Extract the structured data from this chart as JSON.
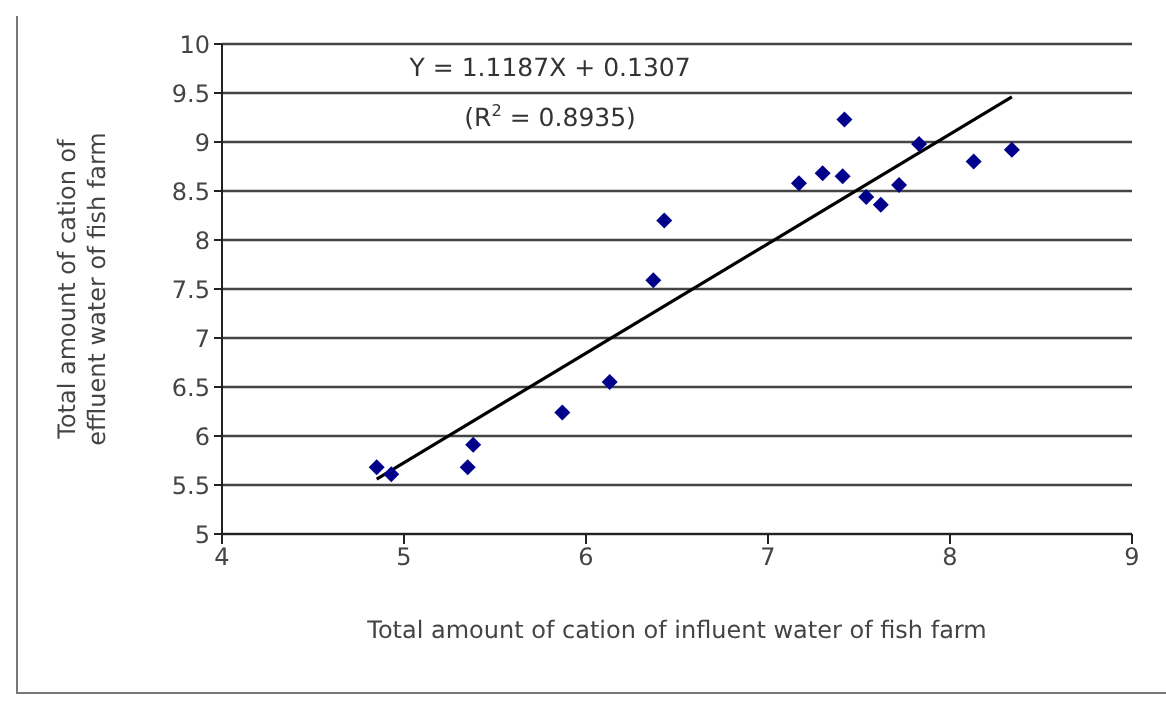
{
  "chart_data": {
    "type": "scatter",
    "xlabel": "Total amount of cation of influent water of fish farm",
    "ylabel": "Total amount of cation of\neffluent water of fish farm",
    "xlim": [
      4,
      9
    ],
    "xticks": [
      4,
      5,
      6,
      7,
      8,
      9
    ],
    "ylim": [
      5,
      10
    ],
    "yticks": [
      5,
      5.5,
      6,
      6.5,
      7,
      7.5,
      8,
      8.5,
      9,
      9.5,
      10
    ],
    "grid": "y",
    "marker": "diamond",
    "annotations": [
      "Y = 1.1187X + 0.1307",
      "(R$^{2}$ = 0.8935)"
    ],
    "series": [
      {
        "color": "#00008b",
        "x": [
          4.85,
          4.93,
          5.38,
          5.35,
          5.87,
          6.13,
          6.37,
          6.43,
          7.17,
          7.3,
          7.41,
          7.42,
          7.54,
          7.62,
          7.72,
          7.83,
          8.13,
          8.34
        ],
        "values": [
          5.68,
          5.61,
          5.91,
          5.68,
          6.24,
          6.55,
          7.59,
          8.2,
          8.58,
          8.68,
          8.65,
          9.23,
          8.44,
          8.36,
          8.56,
          8.98,
          8.8,
          8.92
        ]
      },
      {
        "type": "line",
        "color": "#000000",
        "x": [
          4.85,
          8.34
        ],
        "values": [
          5.56,
          9.46
        ],
        "marker": "none",
        "line_style": "solid"
      }
    ]
  }
}
